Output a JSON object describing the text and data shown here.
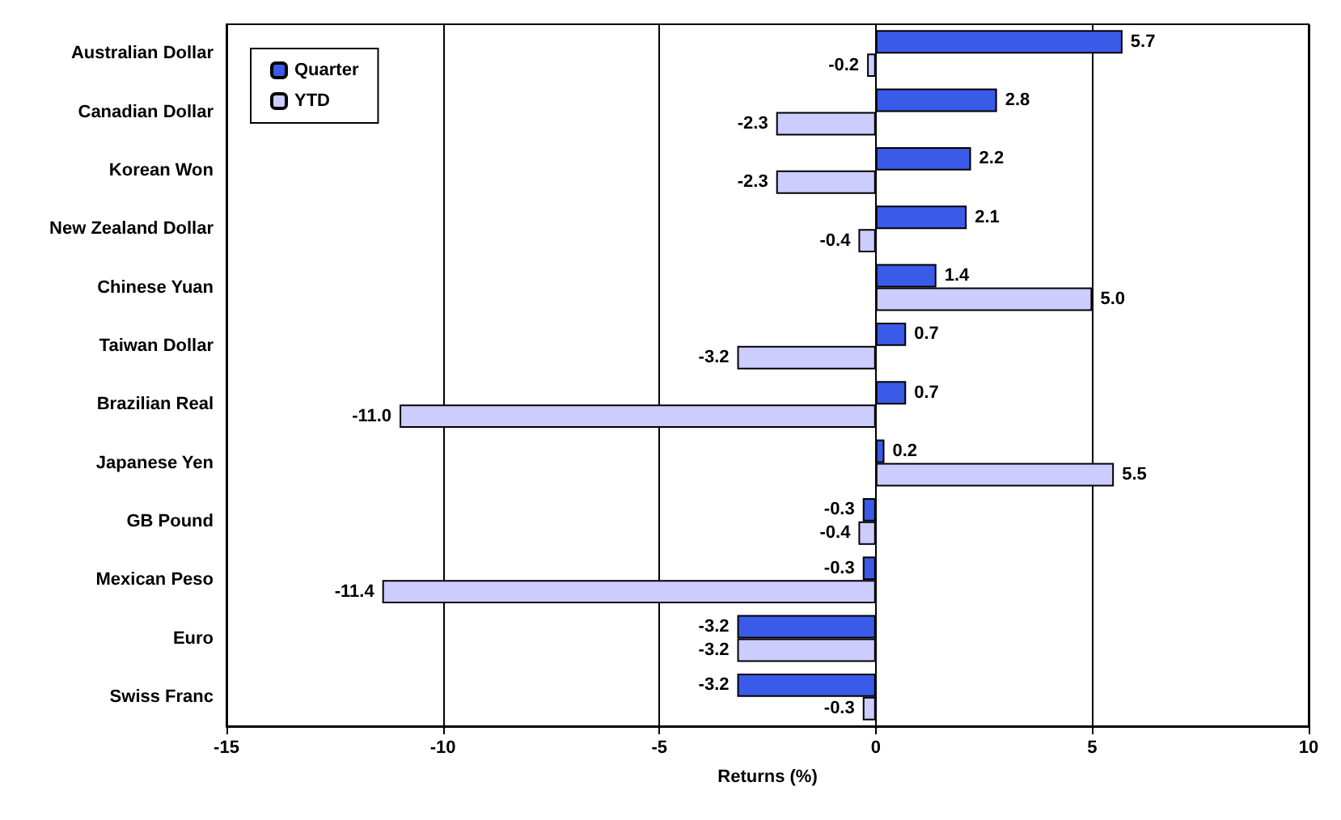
{
  "chart_data": {
    "type": "bar",
    "orientation": "horizontal",
    "xlabel": "Returns (%)",
    "categories": [
      "Australian Dollar",
      "Canadian Dollar",
      "Korean Won",
      "New Zealand Dollar",
      "Chinese Yuan",
      "Taiwan Dollar",
      "Brazilian Real",
      "Japanese Yen",
      "GB Pound",
      "Mexican Peso",
      "Euro",
      "Swiss Franc"
    ],
    "series": [
      {
        "name": "Quarter",
        "color": "#3a5ae8",
        "values": [
          5.7,
          2.8,
          2.2,
          2.1,
          1.4,
          0.7,
          0.7,
          0.2,
          -0.3,
          -0.3,
          -3.2,
          -3.2
        ],
        "value_labels": [
          "5.7",
          "2.8",
          "2.2",
          "2.1",
          "1.4",
          "0.7",
          "0.7",
          "0.2",
          "-0.3",
          "-0.3",
          "-3.2",
          "-3.2"
        ]
      },
      {
        "name": "YTD",
        "color": "#ccccff",
        "values": [
          -0.2,
          -2.3,
          -2.3,
          -0.4,
          5.0,
          -3.2,
          -11.0,
          5.5,
          -0.4,
          -11.4,
          -3.2,
          -0.3
        ],
        "value_labels": [
          "-0.2",
          "-2.3",
          "-2.3",
          "-0.4",
          "5.0",
          "-3.2",
          "-11.0",
          "5.5",
          "-0.4",
          "-11.4",
          "-3.2",
          "-0.3"
        ]
      }
    ],
    "xlim": [
      -15,
      10
    ],
    "xticks": [
      -15,
      -10,
      -5,
      0,
      5,
      10
    ],
    "grid": "x",
    "legend": "top left"
  }
}
